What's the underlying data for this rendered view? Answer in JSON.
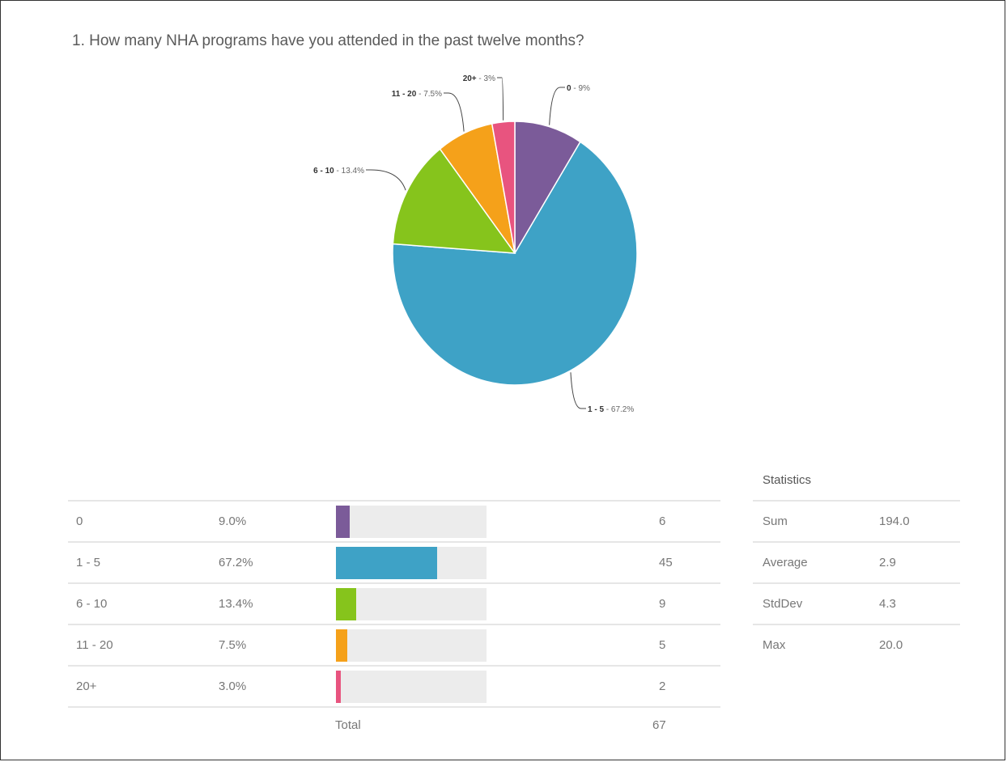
{
  "question": "1. How many NHA programs have you attended in the past twelve months?",
  "chart_data": {
    "type": "pie",
    "title": "1. How many NHA programs have you attended in the past twelve months?",
    "slices": [
      {
        "label": "0",
        "percent": 9.0,
        "count": 6,
        "color": "#7b5b99",
        "callout": "0",
        "callout_pct": "- 9%"
      },
      {
        "label": "1 - 5",
        "percent": 67.2,
        "count": 45,
        "color": "#3ea2c6",
        "callout": "1 - 5",
        "callout_pct": "- 67.2%"
      },
      {
        "label": "6 - 10",
        "percent": 13.4,
        "count": 9,
        "color": "#86c41c",
        "callout": "6 - 10",
        "callout_pct": "- 13.4%"
      },
      {
        "label": "11 - 20",
        "percent": 7.5,
        "count": 5,
        "color": "#f5a11a",
        "callout": "11 - 20",
        "callout_pct": "- 7.5%"
      },
      {
        "label": "20+",
        "percent": 3.0,
        "count": 2,
        "color": "#e8547f",
        "callout": "20+",
        "callout_pct": "- 3%"
      }
    ]
  },
  "table": {
    "rows": [
      {
        "label": "0",
        "pct": "9.0%",
        "fraction": 0.09,
        "count": "6",
        "color": "#7b5b99"
      },
      {
        "label": "1 - 5",
        "pct": "67.2%",
        "fraction": 0.672,
        "count": "45",
        "color": "#3ea2c6"
      },
      {
        "label": "6 - 10",
        "pct": "13.4%",
        "fraction": 0.134,
        "count": "9",
        "color": "#86c41c"
      },
      {
        "label": "11 - 20",
        "pct": "7.5%",
        "fraction": 0.075,
        "count": "5",
        "color": "#f5a11a"
      },
      {
        "label": "20+",
        "pct": "3.0%",
        "fraction": 0.03,
        "count": "2",
        "color": "#e8547f"
      }
    ],
    "total_label": "Total",
    "total_value": "67"
  },
  "statistics": {
    "title": "Statistics",
    "rows": [
      {
        "name": "Sum",
        "value": "194.0"
      },
      {
        "name": "Average",
        "value": "2.9"
      },
      {
        "name": "StdDev",
        "value": "4.3"
      },
      {
        "name": "Max",
        "value": "20.0"
      }
    ]
  }
}
